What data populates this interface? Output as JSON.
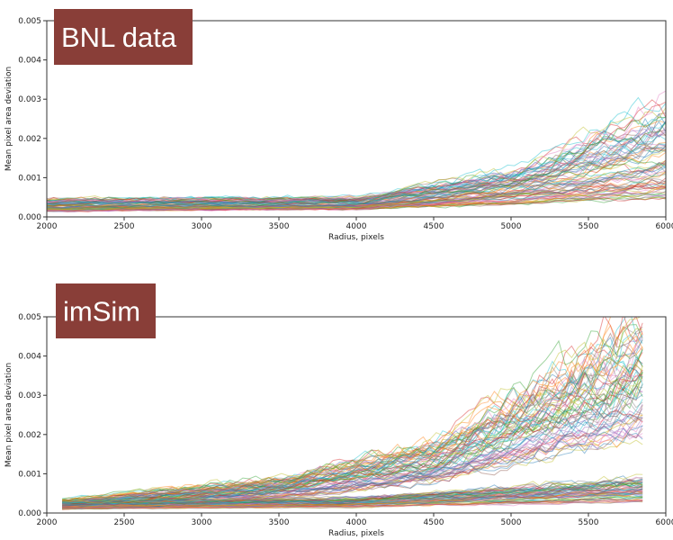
{
  "chart_data": [
    {
      "type": "line",
      "title": "",
      "badge": "BNL data",
      "xlabel": "Radius, pixels",
      "ylabel": "Mean pixel area deviation",
      "xlim": [
        2000,
        6000
      ],
      "ylim": [
        0,
        0.005
      ],
      "xticks": [
        "2000",
        "2500",
        "3000",
        "3500",
        "4000",
        "4500",
        "5000",
        "5500",
        "6000"
      ],
      "yticks": [
        "0.000",
        "0.001",
        "0.002",
        "0.003",
        "0.004",
        "0.005"
      ],
      "grid": false,
      "colors": [
        "#1f77b4",
        "#ff7f0e",
        "#2ca02c",
        "#d62728",
        "#9467bd",
        "#8c564b",
        "#e377c2",
        "#7f7f7f",
        "#bcbd22",
        "#17becf"
      ],
      "series_groups": [
        {
          "count": 80,
          "x_start": 2000,
          "x_end": 6000,
          "y_at": {
            "2000": [
              0.00015,
              0.00045
            ],
            "4000": [
              0.0002,
              0.0005
            ],
            "5000": [
              0.00035,
              0.0012
            ],
            "6000": [
              0.0005,
              0.0029
            ]
          }
        }
      ]
    },
    {
      "type": "line",
      "title": "",
      "badge": "imSim",
      "xlabel": "Radius, pixels",
      "ylabel": "Mean pixel area deviation",
      "xlim": [
        2000,
        6000
      ],
      "ylim": [
        0,
        0.005
      ],
      "xticks": [
        "2000",
        "2500",
        "3000",
        "3500",
        "4000",
        "4500",
        "5000",
        "5500",
        "6000"
      ],
      "yticks": [
        "0.000",
        "0.001",
        "0.002",
        "0.003",
        "0.004",
        "0.005"
      ],
      "grid": false,
      "colors": [
        "#1f77b4",
        "#ff7f0e",
        "#2ca02c",
        "#d62728",
        "#9467bd",
        "#8c564b",
        "#e377c2",
        "#7f7f7f",
        "#bcbd22",
        "#17becf"
      ],
      "series_groups": [
        {
          "count": 70,
          "x_start": 2100,
          "x_end": 5850,
          "y_at": {
            "2100": [
              0.0001,
              0.00035
            ],
            "3500": [
              0.0004,
              0.0009
            ],
            "4500": [
              0.0008,
              0.0018
            ],
            "5850": [
              0.002,
              0.005
            ]
          }
        },
        {
          "count": 60,
          "x_start": 2100,
          "x_end": 5850,
          "y_at": {
            "2100": [
              0.0001,
              0.0003
            ],
            "4000": [
              0.00015,
              0.0004
            ],
            "5850": [
              0.0003,
              0.0009
            ]
          }
        }
      ]
    }
  ]
}
